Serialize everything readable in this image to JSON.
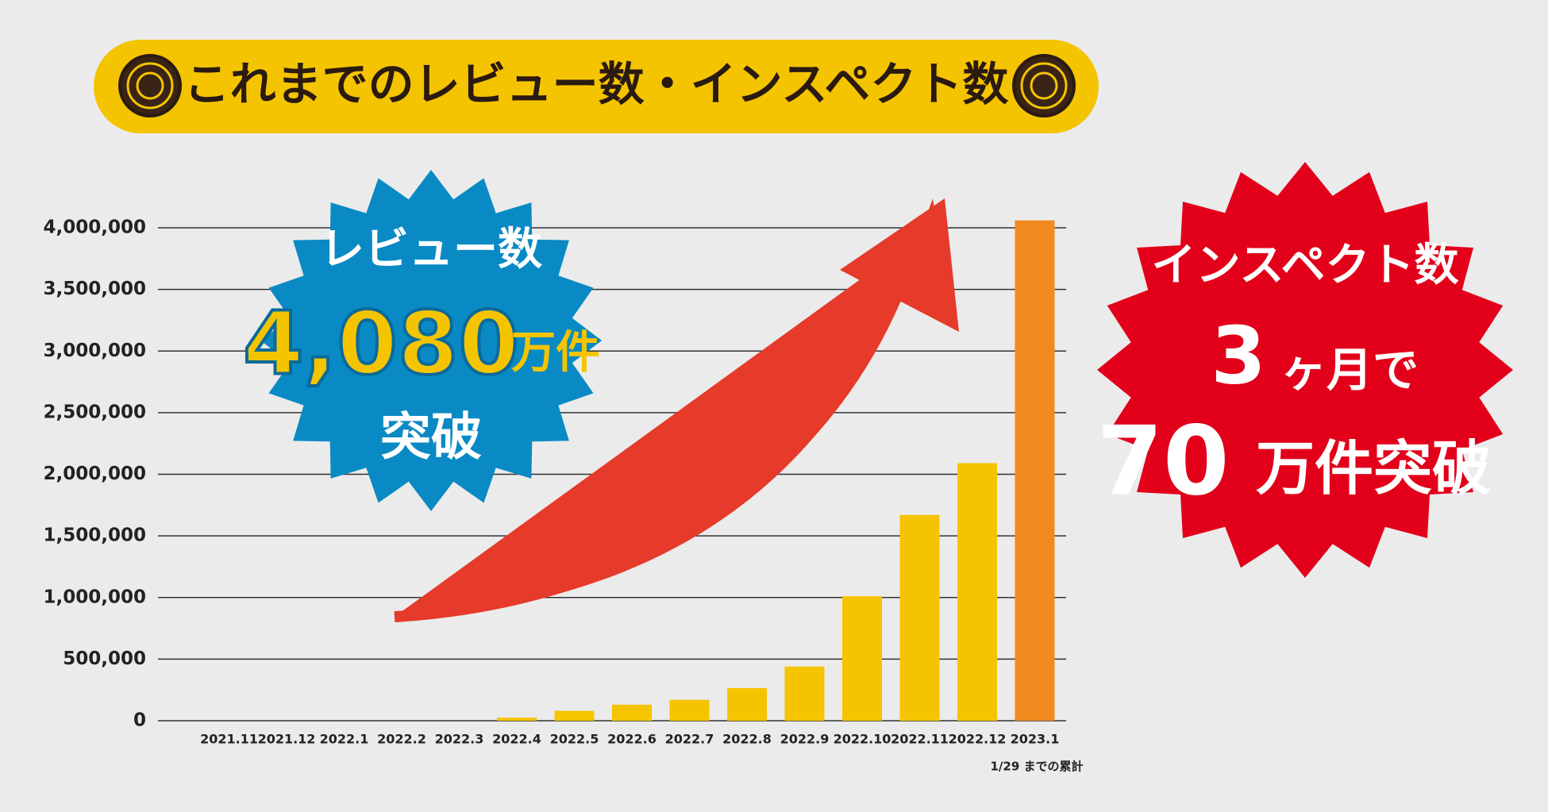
{
  "chart_data": {
    "type": "bar",
    "title": "これまでのレビュー数・インスペクト数",
    "categories": [
      "2021.11",
      "2021.12",
      "2022.1",
      "2022.2",
      "2022.3",
      "2022.4",
      "2022.5",
      "2022.6",
      "2022.7",
      "2022.8",
      "2022.9",
      "2022.10",
      "2022.11",
      "2022.12",
      "2023.1"
    ],
    "values": [
      0,
      0,
      0,
      0,
      0,
      25000,
      80000,
      130000,
      170000,
      265000,
      440000,
      1010000,
      1670000,
      2090000,
      4060000
    ],
    "colors": [
      "#f5c400",
      "#f5c400",
      "#f5c400",
      "#f5c400",
      "#f5c400",
      "#f5c400",
      "#f5c400",
      "#f5c400",
      "#f5c400",
      "#f5c400",
      "#f5c400",
      "#f5c400",
      "#f5c400",
      "#f5c400",
      "#f08a1e"
    ],
    "ylim": [
      0,
      4000000
    ],
    "yticks": [
      0,
      {
        "value": 500000,
        "label": "500,000"
      },
      {
        "value": 1000000,
        "label": "1,000,000"
      },
      {
        "value": 1500000,
        "label": "1,500,000"
      },
      {
        "value": 2000000,
        "label": "2,000,000"
      },
      {
        "value": 2500000,
        "label": "2,500,000"
      },
      {
        "value": 3000000,
        "label": "3,000,000"
      },
      {
        "value": 3500000,
        "label": "3,500,000"
      },
      {
        "value": 4000000,
        "label": "4,000,000"
      }
    ],
    "grid": true,
    "note": "1/29 までの累計",
    "badges": [
      {
        "lines": [
          "レビュー数",
          "4,080",
          "万件",
          "突破"
        ]
      },
      {
        "lines": [
          "インスペクト数",
          "3",
          "ヶ月で",
          "70",
          "万件突破"
        ]
      }
    ]
  }
}
